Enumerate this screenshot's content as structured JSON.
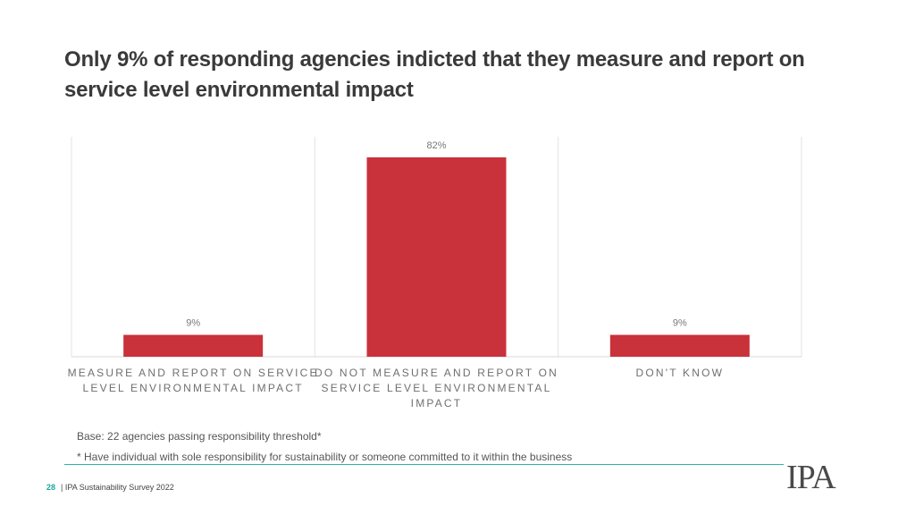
{
  "title": "Only 9% of responding  agencies indicted that they measure and report on service level environmental impact",
  "chart_data": {
    "type": "bar",
    "categories": [
      [
        "MEASURE AND REPORT ON SERVICE",
        "LEVEL ENVIRONMENTAL IMPACT"
      ],
      [
        "DO NOT MEASURE AND REPORT ON",
        "SERVICE LEVEL ENVIRONMENTAL",
        "IMPACT"
      ],
      [
        "DON'T KNOW"
      ]
    ],
    "values": [
      9,
      82,
      9
    ],
    "value_labels": [
      "9%",
      "82%",
      "9%"
    ],
    "ylim": [
      0,
      82
    ],
    "bar_color": "#c9323b",
    "grid": true
  },
  "notes": {
    "base": "Base: 22 agencies passing responsibility threshold*",
    "footnote": "* Have individual with sole responsibility for sustainability or someone committed to it within the business"
  },
  "footer": {
    "page_number": "28",
    "text": "| IPA Sustainability Survey 2022"
  },
  "logo": "IPA",
  "colors": {
    "accent": "#2bb3a6",
    "bar": "#c9323b"
  }
}
